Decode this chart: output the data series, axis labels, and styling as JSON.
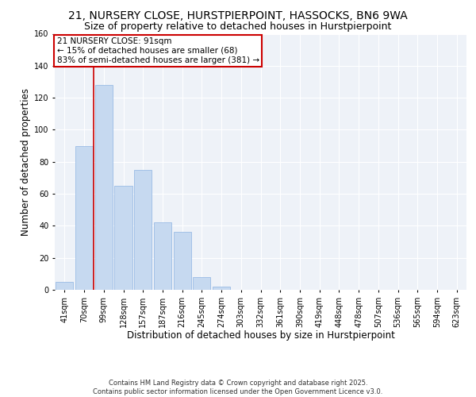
{
  "title_line1": "21, NURSERY CLOSE, HURSTPIERPOINT, HASSOCKS, BN6 9WA",
  "title_line2": "Size of property relative to detached houses in Hurstpierpoint",
  "xlabel": "Distribution of detached houses by size in Hurstpierpoint",
  "ylabel": "Number of detached properties",
  "categories": [
    "41sqm",
    "70sqm",
    "99sqm",
    "128sqm",
    "157sqm",
    "187sqm",
    "216sqm",
    "245sqm",
    "274sqm",
    "303sqm",
    "332sqm",
    "361sqm",
    "390sqm",
    "419sqm",
    "448sqm",
    "478sqm",
    "507sqm",
    "536sqm",
    "565sqm",
    "594sqm",
    "623sqm"
  ],
  "values": [
    5,
    90,
    128,
    65,
    75,
    42,
    36,
    8,
    2,
    0,
    0,
    0,
    0,
    0,
    0,
    0,
    0,
    0,
    0,
    0,
    0
  ],
  "bar_color": "#c6d9f0",
  "bar_edge_color": "#8db3e2",
  "vline_color": "#cc0000",
  "vline_pos": 1.5,
  "annotation_text": "21 NURSERY CLOSE: 91sqm\n← 15% of detached houses are smaller (68)\n83% of semi-detached houses are larger (381) →",
  "annotation_box_color": "#ffffff",
  "annotation_box_edge": "#cc0000",
  "ylim": [
    0,
    160
  ],
  "yticks": [
    0,
    20,
    40,
    60,
    80,
    100,
    120,
    140,
    160
  ],
  "footer": "Contains HM Land Registry data © Crown copyright and database right 2025.\nContains public sector information licensed under the Open Government Licence v3.0.",
  "bg_color": "#eef2f8",
  "grid_color": "#ffffff",
  "title_fontsize": 10,
  "subtitle_fontsize": 9,
  "axis_label_fontsize": 8.5,
  "tick_fontsize": 7,
  "footer_fontsize": 6,
  "annot_fontsize": 7.5
}
